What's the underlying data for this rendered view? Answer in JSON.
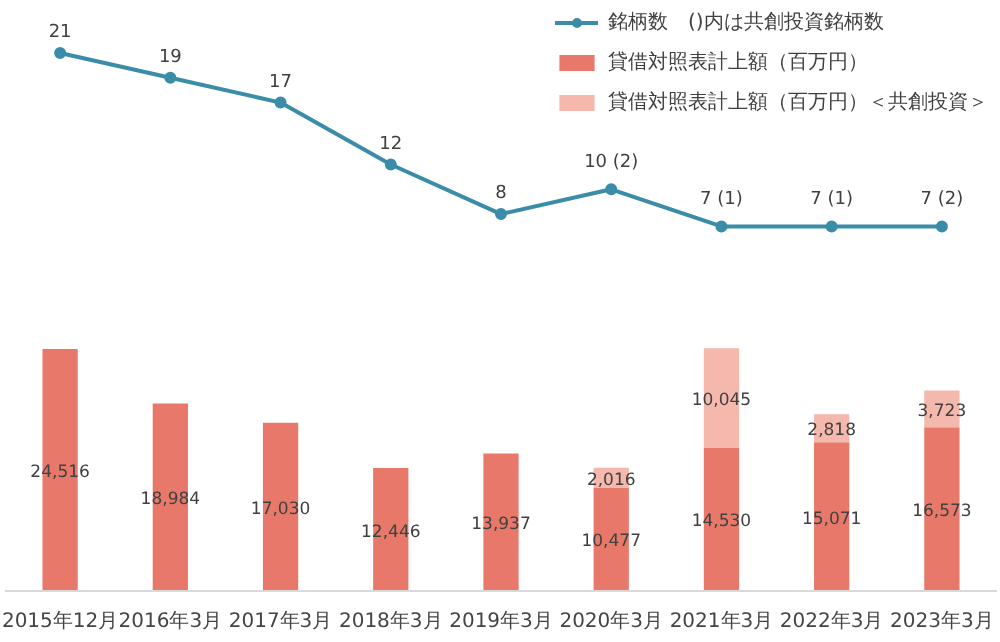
{
  "chart_data": [
    {
      "type": "line",
      "categories": [
        null,
        null,
        null,
        null,
        null,
        null,
        null,
        null,
        null
      ],
      "series": [
        {
          "name": "銘柄数　()内は共創投資銘柄数",
          "color": "#3a8ca8",
          "values": [
            21,
            19,
            17,
            12,
            8,
            10,
            7,
            7,
            7
          ],
          "value_labels": [
            "21",
            "19",
            "17",
            "12",
            "8",
            "10 (2)",
            "7 (1)",
            "7 (1)",
            "7 (2)"
          ]
        }
      ],
      "marker": "circle",
      "line_style": "solid",
      "tick_labels": "x",
      "grid": false,
      "legend": "top right"
    },
    {
      "type": "bar",
      "stacked": true,
      "categories": [
        "2015年12月",
        "2016年3月",
        "2017年3月",
        "2018年3月",
        "2019年3月",
        "2020年3月",
        "2021年3月",
        "2022年3月",
        "2023年3月"
      ],
      "series": [
        {
          "name": "貸借対照表計上額（百万円）",
          "color": "#e8796a",
          "values": [
            24516,
            18984,
            17030,
            12446,
            13937,
            10477,
            14530,
            15071,
            16573
          ],
          "value_labels": [
            "24,516",
            "18,984",
            "17,030",
            "12,446",
            "13,937",
            "10,477",
            "14,530",
            "15,071",
            "16,573"
          ]
        },
        {
          "name": "貸借対照表計上額（百万円）＜共創投資＞",
          "color": "#f4b8ad",
          "values": [
            null,
            null,
            null,
            null,
            null,
            2016,
            10045,
            2818,
            3723
          ],
          "value_labels": [
            null,
            null,
            null,
            null,
            null,
            "2,016",
            "10,045",
            "2,818",
            "3,723"
          ]
        }
      ],
      "tick_labels": "x",
      "grid": false,
      "legend": "top right"
    }
  ]
}
